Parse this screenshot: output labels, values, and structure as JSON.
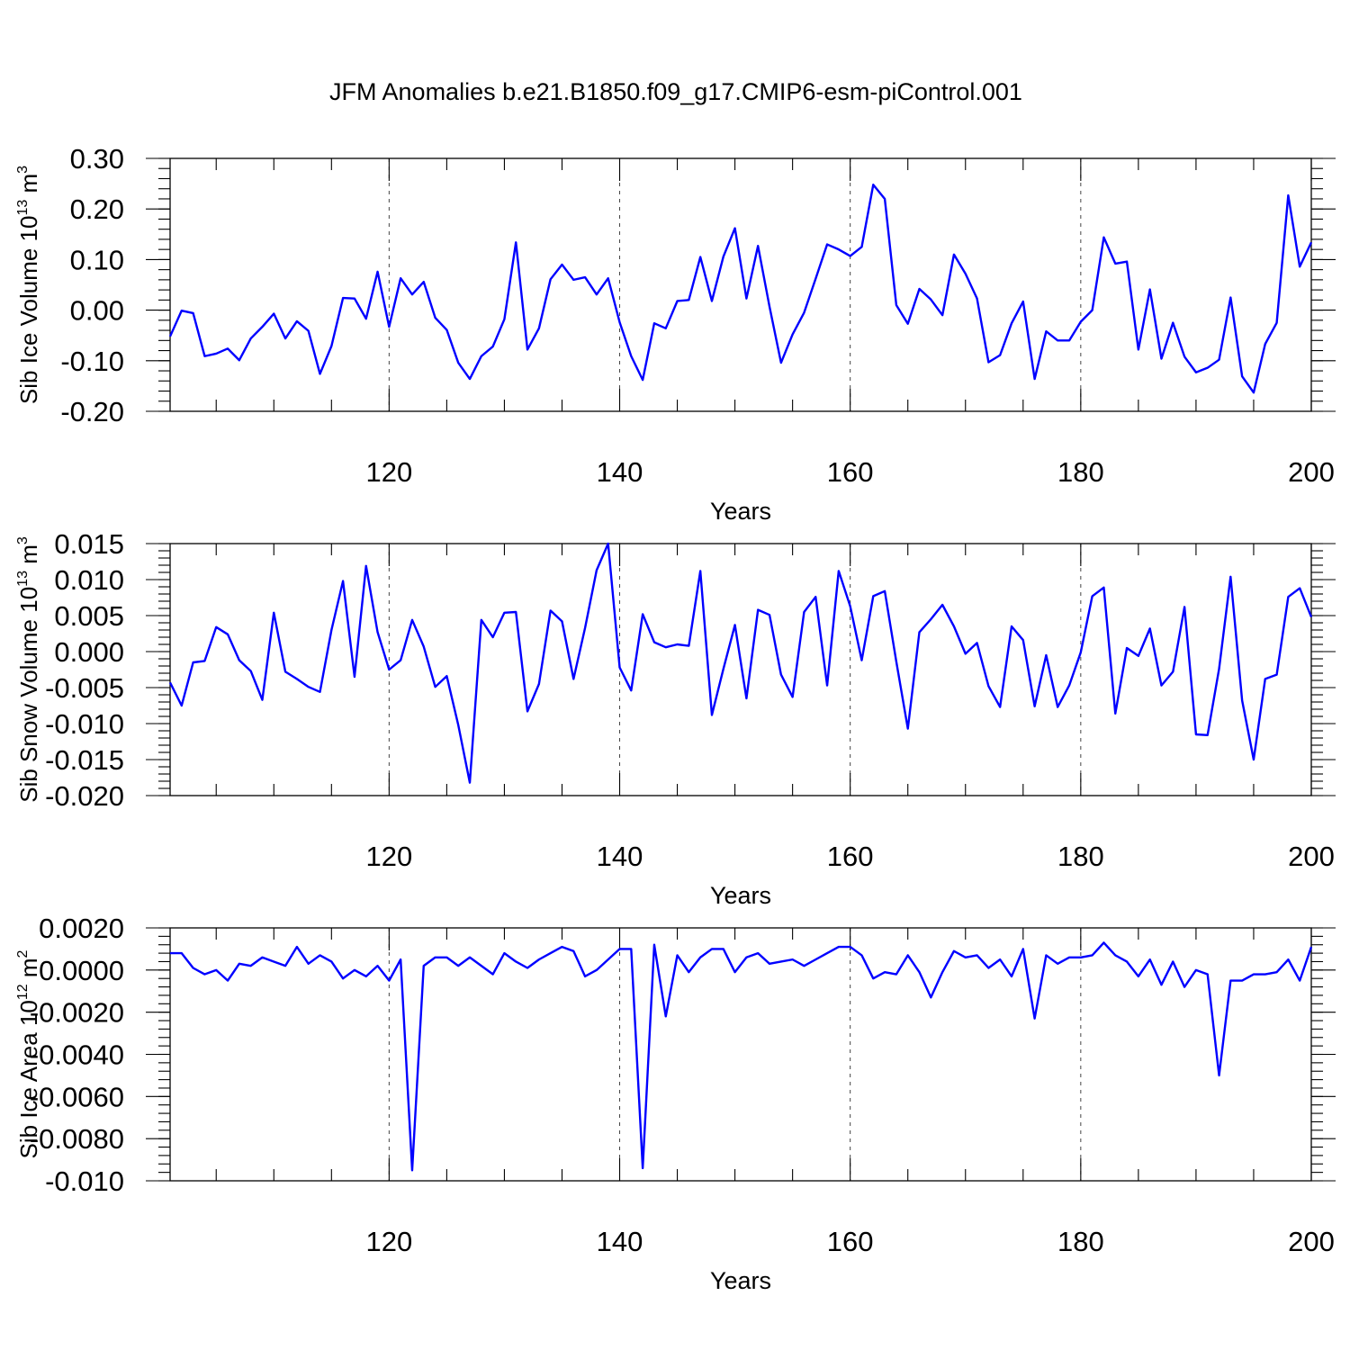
{
  "figure": {
    "title": "JFM Anomalies b.e21.B1850.f09_g17.CMIP6-esm-piControl.001",
    "line_color": "#0000ff"
  },
  "chart_data": [
    {
      "type": "line",
      "title": "",
      "xlabel": "Years",
      "ylabel": "Sib Ice Volume",
      "ylabel_unit": "10",
      "ylabel_exp": "13",
      "ylabel_unit2": "m",
      "ylabel_exp2": "3",
      "xlim": [
        101,
        200
      ],
      "ylim": [
        -0.2,
        0.3
      ],
      "x_ticks": [
        120,
        140,
        160,
        180,
        200
      ],
      "x_tick_labels": [
        "120",
        "140",
        "160",
        "180",
        "200"
      ],
      "y_ticks": [
        -0.2,
        -0.1,
        0.0,
        0.1,
        0.2,
        0.3
      ],
      "y_tick_labels": [
        "-0.20",
        "-0.10",
        "0.00",
        "0.10",
        "0.20",
        "0.30"
      ],
      "y_minor_step": 0.02,
      "grid": "dashed vertical at x ticks",
      "series": [
        {
          "name": "Sib Ice Volume",
          "x_start": 101,
          "values": [
            -0.052,
            -0.001,
            -0.006,
            -0.091,
            -0.086,
            -0.076,
            -0.099,
            -0.056,
            -0.033,
            -0.007,
            -0.056,
            -0.022,
            -0.041,
            -0.126,
            -0.071,
            0.024,
            0.023,
            -0.017,
            0.076,
            -0.033,
            0.063,
            0.031,
            0.056,
            -0.015,
            -0.039,
            -0.104,
            -0.136,
            -0.091,
            -0.072,
            -0.018,
            0.134,
            -0.078,
            -0.036,
            0.061,
            0.09,
            0.06,
            0.065,
            0.031,
            0.063,
            -0.024,
            -0.091,
            -0.138,
            -0.026,
            -0.036,
            0.018,
            0.02,
            0.105,
            0.018,
            0.106,
            0.162,
            0.023,
            0.127,
            0.007,
            -0.104,
            -0.048,
            -0.005,
            0.062,
            0.13,
            0.12,
            0.107,
            0.125,
            0.248,
            0.22,
            0.01,
            -0.027,
            0.042,
            0.021,
            -0.01,
            0.11,
            0.072,
            0.023,
            -0.103,
            -0.089,
            -0.026,
            0.017,
            -0.136,
            -0.042,
            -0.06,
            -0.06,
            -0.023,
            0.0,
            0.144,
            0.092,
            0.096,
            -0.078,
            0.041,
            -0.096,
            -0.025,
            -0.092,
            -0.123,
            -0.114,
            -0.098,
            0.025,
            -0.131,
            -0.163,
            -0.067,
            -0.025,
            0.227,
            0.086,
            0.134
          ]
        }
      ]
    },
    {
      "type": "line",
      "title": "",
      "xlabel": "Years",
      "ylabel": "Sib Snow Volume",
      "ylabel_unit": "10",
      "ylabel_exp": "13",
      "ylabel_unit2": "m",
      "ylabel_exp2": "3",
      "xlim": [
        101,
        200
      ],
      "ylim": [
        -0.02,
        0.015
      ],
      "x_ticks": [
        120,
        140,
        160,
        180,
        200
      ],
      "x_tick_labels": [
        "120",
        "140",
        "160",
        "180",
        "200"
      ],
      "y_ticks": [
        -0.02,
        -0.015,
        -0.01,
        -0.005,
        0.0,
        0.005,
        0.01,
        0.015
      ],
      "y_tick_labels": [
        "-0.020",
        "-0.015",
        "-0.010",
        "-0.005",
        "0.000",
        "0.005",
        "0.010",
        "0.015"
      ],
      "y_minor_step": 0.001,
      "grid": "dashed vertical at x ticks",
      "series": [
        {
          "name": "Sib Snow Volume",
          "x_start": 101,
          "values": [
            -0.0043,
            -0.0075,
            -0.0015,
            -0.0013,
            0.0034,
            0.0024,
            -0.0012,
            -0.0027,
            -0.0067,
            0.0054,
            -0.0028,
            -0.0038,
            -0.0049,
            -0.0056,
            0.003,
            0.0098,
            -0.0035,
            0.0119,
            0.0027,
            -0.0025,
            -0.0012,
            0.0044,
            0.0007,
            -0.0049,
            -0.0034,
            -0.0102,
            -0.0182,
            0.0044,
            0.002,
            0.0054,
            0.0055,
            -0.0083,
            -0.0045,
            0.0057,
            0.0042,
            -0.0038,
            0.0033,
            0.0113,
            0.015,
            -0.0022,
            -0.0054,
            0.0052,
            0.0013,
            0.0006,
            0.001,
            0.0008,
            0.0112,
            -0.0088,
            -0.0024,
            0.0037,
            -0.0065,
            0.0058,
            0.0051,
            -0.0032,
            -0.0063,
            0.0055,
            0.0076,
            -0.0047,
            0.0112,
            0.0063,
            -0.0012,
            0.0077,
            0.0084,
            -0.0014,
            -0.0107,
            0.0027,
            0.0045,
            0.0065,
            0.0035,
            -0.0003,
            0.0012,
            -0.0048,
            -0.0077,
            0.0035,
            0.0016,
            -0.0076,
            -0.0005,
            -0.0077,
            -0.0047,
            -0.0001,
            0.0077,
            0.0089,
            -0.0086,
            0.0005,
            -0.0006,
            0.0032,
            -0.0047,
            -0.0028,
            0.0062,
            -0.0115,
            -0.0116,
            -0.0024,
            0.0104,
            -0.0068,
            -0.015,
            -0.0038,
            -0.0032,
            0.0076,
            0.0088,
            0.0048
          ]
        }
      ]
    },
    {
      "type": "line",
      "title": "",
      "xlabel": "Years",
      "ylabel": "Sib Ice Area",
      "ylabel_unit": "10",
      "ylabel_exp": "12",
      "ylabel_unit2": "m",
      "ylabel_exp2": "2",
      "xlim": [
        101,
        200
      ],
      "ylim": [
        -0.01,
        0.002
      ],
      "x_ticks": [
        120,
        140,
        160,
        180,
        200
      ],
      "x_tick_labels": [
        "120",
        "140",
        "160",
        "180",
        "200"
      ],
      "y_ticks": [
        -0.01,
        -0.008,
        -0.006,
        -0.004,
        -0.002,
        0.0,
        0.002
      ],
      "y_tick_labels": [
        "-0.010",
        "-0.0080",
        "-0.0060",
        "-0.0040",
        "-0.0020",
        "0.0000",
        "0.0020"
      ],
      "y_minor_step": 0.0004,
      "grid": "dashed vertical at x ticks",
      "series": [
        {
          "name": "Sib Ice Area",
          "x_start": 101,
          "values": [
            0.0008,
            0.0008,
            0.0001,
            -0.0002,
            0.0,
            -0.0005,
            0.0003,
            0.0002,
            0.0006,
            0.0004,
            0.0002,
            0.0011,
            0.0003,
            0.0007,
            0.0004,
            -0.0004,
            0.0,
            -0.0003,
            0.0002,
            -0.0005,
            0.0005,
            -0.0095,
            0.0002,
            0.0006,
            0.0006,
            0.0002,
            0.0006,
            0.0002,
            -0.0002,
            0.0008,
            0.0004,
            0.0001,
            0.0005,
            0.0008,
            0.0011,
            0.0009,
            -0.0003,
            0.0,
            0.0005,
            0.001,
            0.001,
            -0.0094,
            0.0012,
            -0.0022,
            0.0007,
            -0.0001,
            0.0006,
            0.001,
            0.001,
            -0.0001,
            0.0006,
            0.0008,
            0.0003,
            0.0004,
            0.0005,
            0.0002,
            0.0005,
            0.0008,
            0.0011,
            0.0011,
            0.0007,
            -0.0004,
            -0.0001,
            -0.0002,
            0.0007,
            -0.0001,
            -0.0013,
            -0.0001,
            0.0009,
            0.0006,
            0.0007,
            0.0001,
            0.0005,
            -0.0003,
            0.001,
            -0.0023,
            0.0007,
            0.0003,
            0.0006,
            0.0006,
            0.0007,
            0.0013,
            0.0007,
            0.0004,
            -0.0003,
            0.0005,
            -0.0007,
            0.0004,
            -0.0008,
            0.0,
            -0.0002,
            -0.005,
            -0.0005,
            -0.0005,
            -0.0002,
            -0.0002,
            -0.0001,
            0.0005,
            -0.0005,
            0.0011
          ]
        }
      ]
    }
  ]
}
